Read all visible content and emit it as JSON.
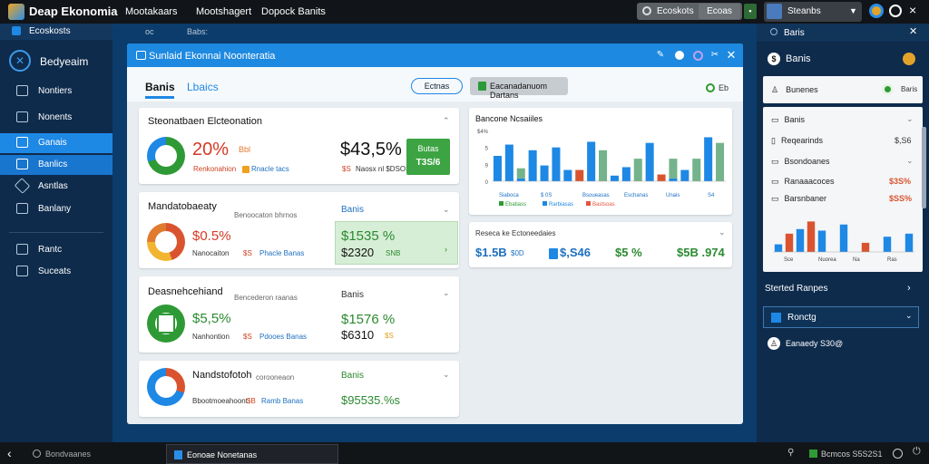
{
  "topbar": {
    "app_title": "Deap Ekonomia",
    "menu": [
      "Mootakaars",
      "Mootshagert",
      "Dopock Banits"
    ],
    "search_label": "Ecoskots",
    "search_button": "Ecoas",
    "user_name": "Steanbs"
  },
  "sidebar": {
    "header": "Ecoskosts",
    "brand": "Bedyeaim",
    "items": [
      {
        "label": "Nontiers",
        "active": false
      },
      {
        "label": "Nonents",
        "active": false
      },
      {
        "label": "Ganais",
        "active": true
      },
      {
        "label": "Banlics",
        "active": true
      },
      {
        "label": "Asntlas",
        "active": false
      },
      {
        "label": "Banlany",
        "active": false
      },
      {
        "label": "Rantc",
        "active": false
      },
      {
        "label": "Suceats",
        "active": false
      }
    ]
  },
  "content_bar": {
    "label_left": "oc",
    "label_right": "Babs:"
  },
  "main": {
    "window_title": "Sunlaid Ekonnai Noonteratia",
    "tabs": [
      {
        "label": "Banis",
        "active": true
      },
      {
        "label": "Lbaics",
        "active": false
      }
    ],
    "outline_button": "Ectnas",
    "gray_button": "Eacanadanuom Dartans",
    "right_label": "Eb"
  },
  "cards": [
    {
      "title": "Steonatbaen Elcteonation",
      "big_value": "20%",
      "small_value": "Bbl",
      "legend_a": "Renkonahion",
      "legend_b": "Rnacle tacs",
      "right_value": "$43,5%",
      "right_sub_a": "$S",
      "right_sub_b": "Naosx nl $DSOS",
      "box_label": "Butas",
      "box_value": "T3S/6"
    },
    {
      "title": "Mandatobaeaty",
      "subtitle": "Benoocaton bhrnos",
      "big_value": "$0.5%",
      "small_value": "Nanocaiton",
      "legend_a": "$S",
      "legend_b": "Phacle Banas",
      "right_title": "Banis",
      "right_value": "$1535 %",
      "right_sub": "$2320",
      "right_tag": "SNB"
    },
    {
      "title": "Deasnehcehiand",
      "subtitle": "Bencederon raanas",
      "big_value": "$5,5%",
      "small_value": "Nanhontion",
      "legend_a": "$S",
      "legend_b": "Pdooes Banas",
      "right_title": "Banis",
      "right_value": "$1576 %",
      "right_sub": "$6310",
      "right_tag": "$S"
    },
    {
      "title": "Nandstofotoh",
      "subtitle": "corooneaon",
      "small_value": "Bbootmoeahoont",
      "legend_a": "$B",
      "legend_b": "Ramb Banas",
      "right_title": "Banis",
      "right_value": "$95535.%s"
    }
  ],
  "chart_panel": {
    "title": "Bancone Ncsaiiles",
    "y_ticks": [
      "$4%",
      "5",
      "9",
      "0"
    ],
    "x_labels": [
      "Siaboca",
      "$ 0S",
      "Bsoueasas",
      "Eschanas",
      "Unais",
      "S4"
    ],
    "legend": [
      {
        "name": "Ebatiass",
        "color": "#2e9a35"
      },
      {
        "name": "Rarbiasas",
        "color": "#1e88e5"
      },
      {
        "name": "Bastsoas",
        "color": "#e5553a"
      }
    ],
    "colors": {
      "blue": "#1e88e5",
      "green": "#2e9a35",
      "gray_green": "#74b38b",
      "red": "#d9542e"
    }
  },
  "chart_data": {
    "type": "bar",
    "categories": [
      "1",
      "2",
      "3",
      "4",
      "5",
      "6",
      "7",
      "8",
      "9",
      "10",
      "11",
      "12",
      "13",
      "14",
      "15",
      "16",
      "17",
      "18",
      "19",
      "20"
    ],
    "series": [
      {
        "name": "Rarbiasas",
        "values": [
          45,
          65,
          5,
          55,
          28,
          60,
          20,
          0,
          70,
          0,
          10,
          25,
          0,
          68,
          0,
          5,
          20,
          0,
          78,
          0
        ]
      },
      {
        "name": "Ebatiass",
        "values": [
          0,
          0,
          18,
          0,
          0,
          0,
          0,
          0,
          0,
          55,
          0,
          0,
          40,
          0,
          0,
          35,
          0,
          40,
          0,
          68
        ]
      },
      {
        "name": "Bastsoas",
        "values": [
          0,
          0,
          0,
          0,
          0,
          0,
          0,
          20,
          0,
          0,
          0,
          0,
          0,
          0,
          12,
          0,
          0,
          0,
          0,
          0
        ]
      }
    ],
    "ylim": [
      0,
      90
    ]
  },
  "summary_panel": {
    "title": "Reseca ke Ectoneedaies",
    "values": [
      "$1.5B",
      "$,S46",
      "$5 %",
      "$5B .974"
    ],
    "value_labels": [
      "$0D",
      "",
      "",
      ""
    ]
  },
  "right_panel": {
    "header": "Baris",
    "title": "Banis",
    "row1": "Bunenes",
    "rows": [
      {
        "label": "Banis",
        "value": ""
      },
      {
        "label": "Reqearinds",
        "value": "$,S6"
      },
      {
        "label": "Bsondoanes",
        "value": ""
      },
      {
        "label": "Ranaaacoces",
        "value": "$3S%"
      },
      {
        "label": "Barsnbaner",
        "value": "$SS%"
      }
    ],
    "chart_labels": [
      "Sce",
      "Nuorea",
      "Na",
      "Ras"
    ],
    "link": "Sterted Ranpes",
    "select": "Ronctg",
    "footer": "Eanaedy S30@"
  },
  "right_chart_data": {
    "type": "bar",
    "categories": [
      "1",
      "2",
      "3",
      "4",
      "5",
      "6",
      "7",
      "8",
      "9",
      "10",
      "11",
      "12",
      "13"
    ],
    "values": [
      5,
      12,
      15,
      20,
      14,
      0,
      18,
      0,
      6,
      0,
      10,
      0,
      12
    ],
    "colors": [
      "#1e88e5",
      "#d9542e",
      "#1e88e5",
      "#d9542e",
      "#1e88e5",
      "#1e88e5",
      "#1e88e5",
      "#1e88e5",
      "#d9542e",
      "#1e88e5",
      "#1e88e5",
      "#d9542e",
      "#1e88e5"
    ],
    "ylim": [
      0,
      25
    ]
  },
  "taskbar": {
    "search": "Bondvaanes",
    "active_app": "Eonoae Nonetanas",
    "status": "Bcmcos S5S2S1"
  }
}
